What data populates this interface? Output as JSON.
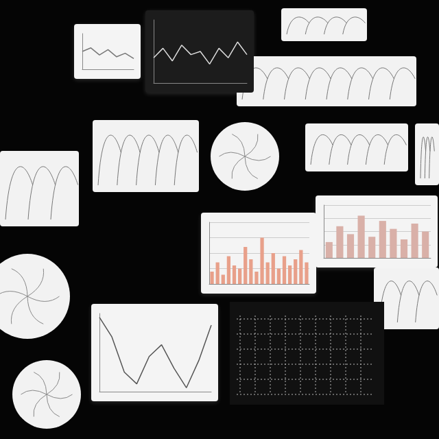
{
  "chart_data": [
    {
      "type": "bar",
      "color": "#e8a08a",
      "values": [
        20,
        35,
        15,
        45,
        30,
        25,
        60,
        40,
        20,
        75,
        35,
        50,
        25,
        45,
        30,
        40,
        55,
        35
      ],
      "ylim": [
        0,
        100
      ],
      "yticks": [
        0,
        25,
        50,
        75,
        100
      ],
      "grid": true,
      "tick_labels": false
    },
    {
      "type": "bar",
      "color": "#d9b0a8",
      "values": [
        30,
        60,
        45,
        80,
        40,
        70,
        55,
        35,
        65,
        50
      ],
      "ylim": [
        0,
        100
      ],
      "yticks": [
        0,
        25,
        50,
        75,
        100
      ],
      "grid": true,
      "tick_labels": false
    },
    {
      "type": "line",
      "color": "#555555",
      "values": [
        95,
        70,
        25,
        10,
        45,
        60,
        30,
        5,
        40,
        85
      ],
      "ylim": [
        0,
        100
      ],
      "grid": false,
      "tick_labels": false
    },
    {
      "type": "line",
      "color": "#777777",
      "values": [
        50,
        60,
        40,
        55,
        35,
        45,
        30
      ],
      "ylim": [
        0,
        100
      ],
      "grid": false,
      "tick_labels": false
    },
    {
      "type": "line",
      "color": "#dddddd",
      "values": [
        40,
        55,
        35,
        60,
        45,
        50,
        30,
        55,
        40,
        65,
        45
      ],
      "ylim": [
        0,
        100
      ],
      "grid": false,
      "tick_labels": false
    }
  ]
}
